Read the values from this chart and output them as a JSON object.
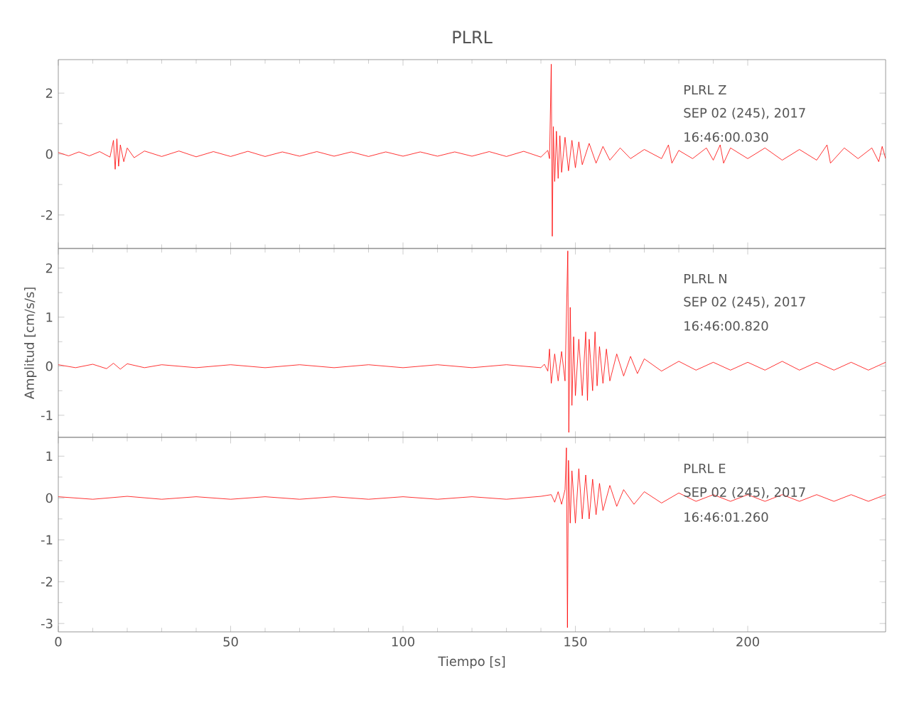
{
  "chart_data": [
    {
      "type": "line",
      "title": "PLRL",
      "xlim": [
        0,
        240
      ],
      "xticks": [
        0,
        50,
        100,
        150,
        200
      ],
      "ylim": [
        -3.1,
        3.1
      ],
      "yticks": [
        -2,
        0,
        2
      ],
      "tick_labels": "y",
      "annotations": [
        "PLRL   Z",
        "SEP 02 (245), 2017",
        "16:46:00.030"
      ],
      "series": [
        {
          "color": "#ff0000",
          "x": [
            0,
            3,
            6,
            9,
            12,
            15,
            16,
            16.5,
            17,
            17.5,
            18,
            19,
            20,
            22,
            25,
            30,
            35,
            40,
            45,
            50,
            55,
            60,
            65,
            70,
            75,
            80,
            85,
            90,
            95,
            100,
            105,
            110,
            115,
            120,
            125,
            130,
            135,
            140,
            142,
            142.5,
            143,
            143.3,
            143.6,
            144,
            144.5,
            145,
            145.5,
            146,
            147,
            148,
            149,
            150,
            151,
            152,
            154,
            156,
            158,
            160,
            163,
            166,
            170,
            175,
            177,
            178,
            180,
            184,
            188,
            190,
            192,
            193,
            195,
            200,
            205,
            210,
            215,
            220,
            223,
            224,
            228,
            232,
            236,
            238,
            239,
            240
          ],
          "values": [
            0.05,
            -0.06,
            0.07,
            -0.06,
            0.08,
            -0.1,
            0.45,
            -0.5,
            0.5,
            -0.4,
            0.3,
            -0.25,
            0.2,
            -0.12,
            0.1,
            -0.08,
            0.1,
            -0.09,
            0.08,
            -0.08,
            0.09,
            -0.08,
            0.07,
            -0.07,
            0.08,
            -0.07,
            0.07,
            -0.08,
            0.07,
            -0.07,
            0.07,
            -0.07,
            0.07,
            -0.07,
            0.08,
            -0.08,
            0.09,
            -0.1,
            0.12,
            -0.15,
            2.95,
            -2.7,
            0.9,
            -0.9,
            0.75,
            -0.8,
            0.6,
            -0.6,
            0.55,
            -0.55,
            0.45,
            -0.45,
            0.4,
            -0.35,
            0.35,
            -0.3,
            0.25,
            -0.2,
            0.2,
            -0.15,
            0.15,
            -0.15,
            0.3,
            -0.3,
            0.12,
            -0.15,
            0.2,
            -0.2,
            0.3,
            -0.3,
            0.2,
            -0.15,
            0.2,
            -0.2,
            0.15,
            -0.2,
            0.3,
            -0.3,
            0.2,
            -0.15,
            0.2,
            -0.25,
            0.25,
            -0.15
          ]
        }
      ]
    },
    {
      "type": "line",
      "ylabel": "Amplitud [cm/s/s]",
      "xlim": [
        0,
        240
      ],
      "xticks": [
        0,
        50,
        100,
        150,
        200
      ],
      "ylim": [
        -1.45,
        2.4
      ],
      "yticks": [
        -1,
        0,
        1,
        2
      ],
      "tick_labels": "y",
      "annotations": [
        "PLRL   N",
        "SEP 02 (245), 2017",
        "16:46:00.820"
      ],
      "series": [
        {
          "color": "#ff0000",
          "x": [
            0,
            5,
            10,
            14,
            16,
            18,
            20,
            25,
            30,
            40,
            50,
            60,
            70,
            80,
            90,
            100,
            110,
            120,
            130,
            140,
            141,
            142,
            142.5,
            143,
            144,
            145,
            146,
            147,
            147.8,
            148.1,
            148.5,
            149,
            149.5,
            150,
            151,
            152,
            153,
            153.5,
            154,
            155,
            155.7,
            156.3,
            157,
            158,
            159,
            160,
            162,
            164,
            166,
            168,
            170,
            175,
            180,
            185,
            190,
            195,
            200,
            205,
            210,
            215,
            220,
            225,
            230,
            235,
            240
          ],
          "values": [
            0.03,
            -0.03,
            0.04,
            -0.05,
            0.06,
            -0.06,
            0.05,
            -0.03,
            0.03,
            -0.03,
            0.03,
            -0.03,
            0.03,
            -0.03,
            0.03,
            -0.03,
            0.03,
            -0.03,
            0.03,
            -0.03,
            0.04,
            -0.1,
            0.35,
            -0.35,
            0.25,
            -0.3,
            0.3,
            -0.3,
            2.35,
            -1.35,
            1.2,
            -0.8,
            0.6,
            -0.6,
            0.55,
            -0.6,
            0.7,
            -0.7,
            0.55,
            -0.5,
            0.7,
            -0.4,
            0.4,
            -0.35,
            0.35,
            -0.3,
            0.25,
            -0.2,
            0.2,
            -0.15,
            0.15,
            -0.1,
            0.1,
            -0.08,
            0.08,
            -0.08,
            0.08,
            -0.08,
            0.1,
            -0.08,
            0.08,
            -0.08,
            0.08,
            -0.08,
            0.08
          ]
        }
      ]
    },
    {
      "type": "line",
      "xlabel": "Tiempo [s]",
      "xlim": [
        0,
        240
      ],
      "xticks": [
        0,
        50,
        100,
        150,
        200
      ],
      "ylim": [
        -3.2,
        1.45
      ],
      "yticks": [
        -3,
        -2,
        -1,
        0,
        1
      ],
      "annotations": [
        "PLRL   E",
        "SEP 02 (245), 2017",
        "16:46:01.260"
      ],
      "series": [
        {
          "color": "#ff0000",
          "x": [
            0,
            10,
            20,
            30,
            40,
            50,
            60,
            70,
            80,
            90,
            100,
            110,
            120,
            130,
            140,
            143,
            144,
            145,
            146,
            147,
            147.4,
            147.7,
            148,
            148.5,
            149,
            150,
            151,
            152,
            153,
            154,
            155,
            156,
            157,
            158,
            160,
            162,
            164,
            167,
            170,
            175,
            180,
            185,
            190,
            195,
            200,
            205,
            210,
            215,
            220,
            225,
            230,
            235,
            240
          ],
          "values": [
            0.03,
            -0.03,
            0.04,
            -0.03,
            0.03,
            -0.03,
            0.03,
            -0.03,
            0.03,
            -0.03,
            0.03,
            -0.03,
            0.03,
            -0.03,
            0.04,
            0.08,
            -0.1,
            0.15,
            -0.15,
            0.2,
            1.2,
            -3.1,
            0.9,
            -0.6,
            0.65,
            -0.6,
            0.7,
            -0.5,
            0.55,
            -0.5,
            0.45,
            -0.4,
            0.35,
            -0.3,
            0.3,
            -0.2,
            0.2,
            -0.15,
            0.15,
            -0.12,
            0.12,
            -0.08,
            0.08,
            -0.08,
            0.08,
            -0.08,
            0.08,
            -0.08,
            0.08,
            -0.08,
            0.08,
            -0.08,
            0.08
          ]
        }
      ]
    }
  ]
}
